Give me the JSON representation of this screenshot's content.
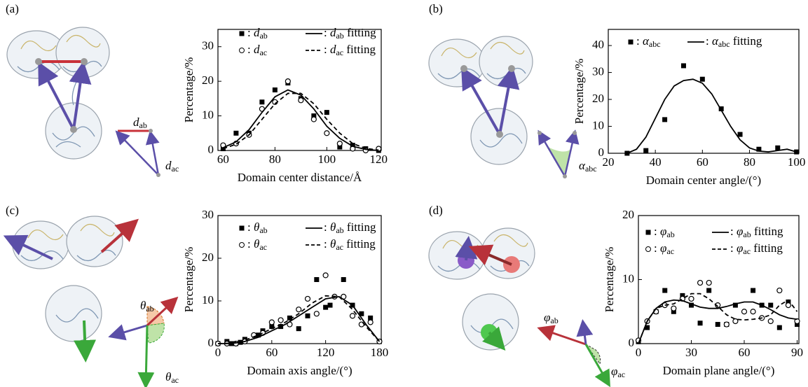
{
  "chart_data": [
    {
      "type": "scatter",
      "panel": "(a)",
      "illustration_labels": [
        "dab",
        "dac"
      ],
      "xlabel": "Domain center distance/Å",
      "ylabel": "Percentage/%",
      "xlim": [
        58,
        121
      ],
      "ylim": [
        0,
        35
      ],
      "xticks": [
        60,
        80,
        100,
        120
      ],
      "yticks": [
        0,
        10,
        20,
        30
      ],
      "series": [
        {
          "name": ": dab",
          "marker": "square",
          "color": "#000000",
          "x": [
            60,
            65,
            70,
            75,
            80,
            85,
            90,
            95,
            100,
            105,
            110,
            115,
            120
          ],
          "values": [
            0.5,
            5,
            5,
            14,
            17.5,
            19.5,
            15,
            10,
            11,
            1,
            1.5,
            0.5,
            0
          ]
        },
        {
          "name": ": dac",
          "marker": "circle",
          "color": "#000000",
          "x": [
            60,
            65,
            70,
            75,
            80,
            85,
            90,
            95,
            100,
            105,
            110,
            115,
            120
          ],
          "values": [
            1.5,
            2,
            4.5,
            12,
            14,
            20,
            14.5,
            9,
            5,
            2,
            0.5,
            0,
            0.5
          ]
        },
        {
          "name": ": dab fitting",
          "marker": "line",
          "color": "#000000",
          "x": [
            60,
            65,
            70,
            75,
            80,
            85,
            90,
            95,
            100,
            105,
            110,
            115,
            120
          ],
          "values": [
            0.8,
            2.5,
            6,
            11,
            15.5,
            17.5,
            16,
            12,
            7,
            3.5,
            1.2,
            0.3,
            0
          ]
        },
        {
          "name": ": dac fitting",
          "marker": "dash",
          "color": "#000000",
          "x": [
            60,
            65,
            70,
            75,
            80,
            85,
            90,
            95,
            100,
            105,
            110,
            115,
            120
          ],
          "values": [
            0.5,
            1.8,
            4.5,
            9,
            13.5,
            16.5,
            16.5,
            13.5,
            9,
            5,
            2,
            0.6,
            0.1
          ]
        }
      ]
    },
    {
      "type": "scatter",
      "panel": "(b)",
      "illustration_labels": [
        "αabc"
      ],
      "xlabel": "Domain center angle/(°)",
      "ylabel": "Percentage/%",
      "xlim": [
        20,
        101
      ],
      "ylim": [
        0,
        46
      ],
      "xticks": [
        20,
        40,
        60,
        80,
        100
      ],
      "yticks": [
        0,
        10,
        20,
        30,
        40
      ],
      "series": [
        {
          "name": ": αabc",
          "marker": "square",
          "color": "#000000",
          "x": [
            28,
            36,
            44,
            52,
            60,
            68,
            76,
            84,
            92,
            100
          ],
          "values": [
            0,
            1,
            12.5,
            32.5,
            27.5,
            16.5,
            7,
            1.5,
            2,
            0.5
          ]
        },
        {
          "name": ": αabc fitting",
          "marker": "line",
          "color": "#000000",
          "x": [
            28,
            32,
            36,
            40,
            44,
            48,
            52,
            56,
            60,
            64,
            68,
            72,
            76,
            80,
            84,
            88,
            92,
            96,
            100
          ],
          "values": [
            0,
            1.5,
            6,
            13,
            20,
            25,
            27,
            27.5,
            26,
            22,
            16,
            10,
            5,
            2,
            0.8,
            0.5,
            1,
            1.5,
            0.5
          ]
        }
      ]
    },
    {
      "type": "scatter",
      "panel": "(c)",
      "illustration_labels": [
        "θab",
        "θac"
      ],
      "xlabel": "Domain axis angle/(°)",
      "ylabel": "Percentage/%",
      "xlim": [
        0,
        182
      ],
      "ylim": [
        0,
        30
      ],
      "xticks": [
        0,
        60,
        120,
        180
      ],
      "yticks": [
        0,
        10,
        20,
        30
      ],
      "series": [
        {
          "name": ": θab",
          "marker": "square",
          "color": "#000000",
          "x": [
            0,
            10,
            15,
            20,
            25,
            30,
            45,
            50,
            60,
            70,
            80,
            90,
            100,
            110,
            120,
            125,
            140,
            150,
            160,
            170,
            180
          ],
          "values": [
            0,
            0.5,
            0,
            0,
            0.3,
            1,
            2,
            3,
            4,
            4,
            6,
            3.5,
            6.5,
            15,
            8.5,
            9,
            15,
            9,
            7,
            6,
            0.5
          ]
        },
        {
          "name": ": θac",
          "marker": "circle",
          "color": "#000000",
          "x": [
            0,
            10,
            20,
            30,
            40,
            50,
            60,
            70,
            80,
            90,
            100,
            110,
            120,
            130,
            140,
            150,
            160,
            170,
            180
          ],
          "values": [
            0,
            0,
            0,
            0.5,
            2,
            2.5,
            5,
            5.5,
            4.5,
            8,
            10.5,
            7,
            16,
            11,
            11,
            6.5,
            4.5,
            5,
            0.5
          ]
        },
        {
          "name": ": θab fitting",
          "marker": "line",
          "color": "#000000",
          "x": [
            0,
            15,
            30,
            45,
            60,
            75,
            90,
            105,
            120,
            135,
            150,
            165,
            180
          ],
          "values": [
            0,
            0,
            0.5,
            1.5,
            3,
            4.5,
            6.5,
            8.5,
            10.5,
            11,
            9,
            4.5,
            0.5
          ]
        },
        {
          "name": ": θac fitting",
          "marker": "dash",
          "color": "#000000",
          "x": [
            0,
            15,
            30,
            45,
            60,
            75,
            90,
            105,
            120,
            135,
            150,
            165,
            180
          ],
          "values": [
            0,
            0.1,
            0.8,
            2,
            3.5,
            5,
            7,
            9.5,
            11.2,
            11,
            8,
            4,
            0.5
          ]
        }
      ]
    },
    {
      "type": "scatter",
      "panel": "(d)",
      "illustration_labels": [
        "φab",
        "φac"
      ],
      "xlabel": "Domain plane angle/(°)",
      "ylabel": "Percentage/%",
      "xlim": [
        0,
        91
      ],
      "ylim": [
        0,
        20
      ],
      "xticks": [
        0,
        30,
        60,
        90
      ],
      "yticks": [
        0,
        10,
        20
      ],
      "series": [
        {
          "name": ": φab",
          "marker": "square",
          "color": "#000000",
          "x": [
            0,
            5,
            10,
            15,
            20,
            25,
            30,
            35,
            40,
            45,
            50,
            55,
            65,
            70,
            75,
            80,
            85,
            90
          ],
          "values": [
            0.3,
            2.5,
            5,
            8.3,
            5,
            7.5,
            6,
            3.2,
            8.3,
            3,
            3,
            6,
            8.3,
            6,
            6,
            2.5,
            6.5,
            3
          ]
        },
        {
          "name": ": φac",
          "marker": "circle",
          "color": "#000000",
          "x": [
            0,
            5,
            10,
            15,
            20,
            25,
            30,
            35,
            40,
            45,
            50,
            55,
            60,
            65,
            70,
            75,
            80,
            85,
            90
          ],
          "values": [
            0.5,
            3.5,
            5,
            6,
            5.5,
            7,
            7,
            9.5,
            9.5,
            6,
            3,
            3.5,
            5,
            5,
            4,
            3.5,
            8.3,
            6,
            3.5
          ]
        },
        {
          "name": ": φab fitting",
          "marker": "line",
          "color": "#000000",
          "x": [
            0,
            5,
            10,
            15,
            20,
            25,
            30,
            35,
            40,
            45,
            50,
            55,
            60,
            65,
            70,
            75,
            80,
            85,
            90
          ],
          "values": [
            0,
            3.5,
            5.5,
            6.5,
            6.8,
            6.7,
            6.2,
            5.7,
            5.5,
            5.5,
            5.8,
            6.2,
            6.5,
            6.5,
            6,
            5.3,
            4.5,
            4,
            3.8
          ]
        },
        {
          "name": ": φac fitting",
          "marker": "dash",
          "color": "#000000",
          "x": [
            0,
            5,
            10,
            15,
            20,
            25,
            30,
            35,
            40,
            45,
            50,
            55,
            60,
            65,
            70,
            75,
            80,
            85,
            90
          ],
          "values": [
            0,
            3.5,
            5.5,
            6,
            6.2,
            7,
            7.8,
            7.8,
            7,
            5.8,
            4.5,
            3.8,
            3.7,
            3.8,
            4,
            4.5,
            6,
            6.8,
            5
          ]
        }
      ]
    }
  ]
}
